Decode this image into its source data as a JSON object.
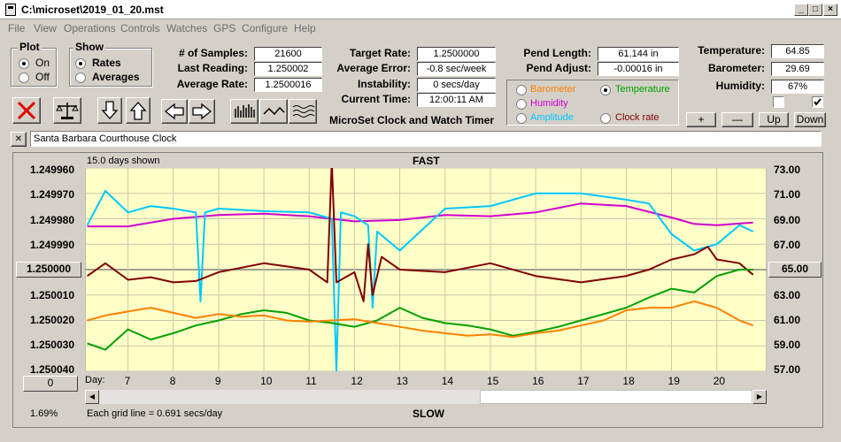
{
  "window": {
    "title": "C:\\microset\\2019_01_20.mst"
  },
  "menu": [
    "File",
    "View",
    "Operations",
    "Controls",
    "Watches",
    "GPS",
    "Configure",
    "Help"
  ],
  "plot_group": {
    "title": "Plot",
    "options": [
      {
        "label": "On",
        "checked": true
      },
      {
        "label": "Off",
        "checked": false
      }
    ]
  },
  "show_group": {
    "title": "Show",
    "options": [
      {
        "label": "Rates",
        "checked": true
      },
      {
        "label": "Averages",
        "checked": false
      }
    ]
  },
  "stats": {
    "samples_label": "# of Samples:",
    "samples": "21600",
    "last_reading_label": "Last Reading:",
    "last_reading": "1.250002",
    "average_rate_label": "Average Rate:",
    "average_rate": "1.2500016",
    "target_rate_label": "Target Rate:",
    "target_rate": "1.2500000",
    "average_error_label": "Average Error:",
    "average_error": "-0.8 sec/week",
    "instability_label": "Instability:",
    "instability": "0 secs/day",
    "current_time_label": "Current Time:",
    "current_time": "12:00:11 AM",
    "pend_length_label": "Pend Length:",
    "pend_length": "61.144 in",
    "pend_adjust_label": "Pend Adjust:",
    "pend_adjust": "-0.00016 in",
    "temperature_label": "Temperature:",
    "temperature": "64.85",
    "barometer_label": "Barometer:",
    "barometer": "29.69",
    "humidity_label": "Humidity:",
    "humidity": "67%"
  },
  "app_name": "MicroSet Clock and Watch Timer",
  "series_selector": {
    "options": [
      {
        "label": "Barometer",
        "color": "#ff8000",
        "checked": false
      },
      {
        "label": "Temperature",
        "color": "#00a000",
        "checked": true
      },
      {
        "label": "Humidity",
        "color": "#d000d0",
        "checked": false
      },
      {
        "label": "Amplitude",
        "color": "#00c8ff",
        "checked": false
      },
      {
        "label": "Clock rate",
        "color": "#800000",
        "checked": false
      }
    ]
  },
  "right_buttons": {
    "plus": "+",
    "minus": "—",
    "up": "Up",
    "down": "Down"
  },
  "clock_name": "Santa Barbara Courthouse Clock",
  "close_x": "✕",
  "plot": {
    "days_shown": "15.0 days shown",
    "fast_label": "FAST",
    "slow_label": "SLOW",
    "day_label": "Day:",
    "grid_note": "Each grid line = 0.691 secs/day",
    "percent": "1.69%",
    "left_center_value": "1.250000",
    "right_center_value": "65.00",
    "bottom_left_button": "0"
  },
  "chart_data": {
    "type": "line",
    "y_left_ticks": [
      "1.249960",
      "1.249970",
      "1.249980",
      "1.249990",
      "1.250000",
      "1.250010",
      "1.250020",
      "1.250030",
      "1.250040"
    ],
    "y_right_ticks": [
      "73.00",
      "71.00",
      "69.00",
      "67.00",
      "65.00",
      "63.00",
      "61.00",
      "59.00",
      "57.00"
    ],
    "x_ticks": [
      "7",
      "8",
      "9",
      "10",
      "11",
      "12",
      "13",
      "14",
      "15",
      "16",
      "17",
      "18",
      "19",
      "20"
    ],
    "x_range": [
      6.05,
      21.1
    ],
    "y_right_range": [
      57,
      73
    ],
    "grid": true,
    "series": [
      {
        "color": "#d000d0",
        "x": [
          6.1,
          7,
          8,
          9,
          10,
          11,
          12,
          13,
          14,
          15,
          16,
          17,
          18,
          19,
          19.5,
          20,
          20.8
        ],
        "y": [
          68.4,
          68.4,
          69.0,
          69.3,
          69.4,
          69.2,
          68.8,
          68.9,
          69.3,
          69.2,
          69.5,
          70.2,
          70.0,
          69.1,
          68.6,
          68.5,
          68.7
        ]
      },
      {
        "color": "#00c8ff",
        "x": [
          6.1,
          6.5,
          7,
          7.5,
          8,
          8.5,
          8.6,
          8.7,
          9,
          10,
          11,
          11.5,
          11.6,
          11.7,
          12,
          12.3,
          12.4,
          12.5,
          13,
          14,
          15,
          16,
          17,
          18,
          18.5,
          19,
          19.5,
          20,
          20.5,
          20.8
        ],
        "y": [
          68.5,
          71.2,
          69.5,
          70.0,
          69.8,
          69.5,
          62.5,
          69.5,
          69.8,
          69.6,
          69.5,
          69.0,
          57.0,
          69.5,
          69.2,
          68.5,
          62.0,
          68.0,
          66.5,
          69.8,
          70.0,
          71.0,
          71.0,
          70.5,
          70.2,
          67.8,
          66.5,
          67.0,
          68.5,
          68.0
        ]
      },
      {
        "color": "#800000",
        "x": [
          6.1,
          6.5,
          7,
          7.5,
          8,
          8.5,
          9,
          10,
          11,
          11.4,
          11.5,
          11.6,
          12,
          12.2,
          12.3,
          12.4,
          12.6,
          13,
          14,
          15,
          16,
          17,
          18,
          18.5,
          19,
          19.5,
          19.8,
          20,
          20.5,
          20.8
        ],
        "y": [
          64.5,
          65.5,
          64.2,
          64.4,
          64.0,
          64.1,
          64.8,
          65.5,
          65.0,
          64.0,
          73.5,
          64.0,
          64.8,
          62.5,
          67.0,
          63.0,
          66.0,
          65.0,
          64.8,
          65.5,
          64.5,
          64.0,
          64.5,
          65.0,
          65.8,
          66.2,
          66.8,
          65.8,
          65.5,
          64.6
        ]
      },
      {
        "color": "#00a000",
        "x": [
          6.1,
          6.5,
          7,
          7.5,
          8,
          8.5,
          9,
          9.5,
          10,
          10.5,
          11,
          11.5,
          12,
          12.5,
          13,
          13.5,
          14,
          14.5,
          15,
          15.5,
          16,
          16.5,
          17,
          17.5,
          18,
          18.5,
          19,
          19.5,
          20,
          20.5,
          20.8
        ],
        "y": [
          59.2,
          58.7,
          60.3,
          59.5,
          60.0,
          60.6,
          61.0,
          61.5,
          61.8,
          61.6,
          61.0,
          60.8,
          60.5,
          61.0,
          62.0,
          61.2,
          60.8,
          60.6,
          60.3,
          59.8,
          60.1,
          60.5,
          61.0,
          61.5,
          62.0,
          62.8,
          63.5,
          63.2,
          64.5,
          65.0,
          65.0
        ]
      },
      {
        "color": "#ff8000",
        "x": [
          6.1,
          6.5,
          7,
          7.5,
          8,
          8.5,
          9,
          9.5,
          10,
          10.5,
          11,
          11.5,
          12,
          12.5,
          13,
          13.5,
          14,
          14.5,
          15,
          15.5,
          16,
          16.5,
          17,
          17.5,
          18,
          18.5,
          19,
          19.5,
          20,
          20.5,
          20.8
        ],
        "y": [
          61.0,
          61.4,
          61.7,
          62.0,
          61.6,
          61.2,
          61.5,
          61.3,
          61.4,
          61.0,
          60.9,
          61.0,
          61.1,
          60.8,
          60.5,
          60.2,
          60.0,
          59.8,
          59.9,
          59.7,
          60.0,
          60.2,
          60.6,
          61.0,
          61.8,
          62.0,
          62.0,
          62.5,
          62.0,
          61.0,
          60.6
        ]
      }
    ]
  }
}
